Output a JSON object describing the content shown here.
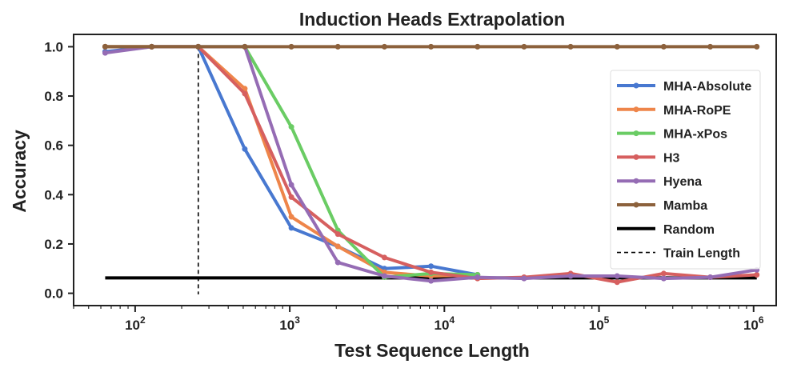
{
  "chart_data": {
    "type": "line",
    "title": "Induction Heads Extrapolation",
    "xlabel": "Test Sequence Length",
    "ylabel": "Accuracy",
    "xscale": "log",
    "xlim": [
      40,
      1400000
    ],
    "ylim": [
      -0.05,
      1.05
    ],
    "x_ticks": [
      {
        "base": "10",
        "exp": "2",
        "value": 100
      },
      {
        "base": "10",
        "exp": "3",
        "value": 1000
      },
      {
        "base": "10",
        "exp": "4",
        "value": 10000
      },
      {
        "base": "10",
        "exp": "5",
        "value": 100000
      },
      {
        "base": "10",
        "exp": "6",
        "value": 1000000
      }
    ],
    "y_ticks": [
      "0.0",
      "0.2",
      "0.4",
      "0.6",
      "0.8",
      "1.0"
    ],
    "y_tick_values": [
      0,
      0.2,
      0.4,
      0.6,
      0.8,
      1.0
    ],
    "grid": false,
    "legend_position": "center-right",
    "series": [
      {
        "name": "MHA-Absolute",
        "color": "#4878d0",
        "x": [
          64,
          128,
          256,
          512,
          1024,
          2048,
          4096,
          8192,
          16384
        ],
        "y": [
          0.98,
          1.0,
          1.0,
          0.585,
          0.265,
          0.19,
          0.1,
          0.11,
          0.075
        ]
      },
      {
        "name": "MHA-RoPE",
        "color": "#ee854a",
        "x": [
          64,
          128,
          256,
          512,
          1024,
          2048,
          4096,
          8192,
          16384
        ],
        "y": [
          1.0,
          1.0,
          1.0,
          0.83,
          0.31,
          0.19,
          0.085,
          0.07,
          0.075
        ]
      },
      {
        "name": "MHA-xPos",
        "color": "#6acc64",
        "x": [
          64,
          128,
          256,
          512,
          1024,
          2048,
          4096,
          8192,
          16384
        ],
        "y": [
          1.0,
          1.0,
          1.0,
          1.0,
          0.675,
          0.255,
          0.065,
          0.08,
          0.075
        ]
      },
      {
        "name": "H3",
        "color": "#d65f5f",
        "x": [
          64,
          128,
          256,
          512,
          1024,
          2048,
          4096,
          8192,
          16384,
          32768,
          65536,
          131072,
          262144,
          524288,
          1048576
        ],
        "y": [
          1.0,
          1.0,
          1.0,
          0.81,
          0.39,
          0.24,
          0.145,
          0.085,
          0.06,
          0.065,
          0.08,
          0.045,
          0.08,
          0.065,
          0.075
        ]
      },
      {
        "name": "Hyena",
        "color": "#956cb4",
        "x": [
          64,
          128,
          256,
          512,
          1024,
          2048,
          4096,
          8192,
          16384,
          32768,
          65536,
          131072,
          262144,
          524288,
          1048576
        ],
        "y": [
          0.975,
          1.0,
          1.0,
          1.0,
          0.44,
          0.125,
          0.07,
          0.05,
          0.065,
          0.06,
          0.07,
          0.07,
          0.06,
          0.065,
          0.095
        ]
      },
      {
        "name": "Mamba",
        "color": "#8c613c",
        "x": [
          64,
          128,
          256,
          512,
          1024,
          2048,
          4096,
          8192,
          16384,
          32768,
          65536,
          131072,
          262144,
          524288,
          1048576
        ],
        "y": [
          1.0,
          1.0,
          1.0,
          1.0,
          1.0,
          1.0,
          1.0,
          1.0,
          1.0,
          1.0,
          1.0,
          1.0,
          1.0,
          1.0,
          1.0
        ]
      }
    ],
    "reference_lines": [
      {
        "name": "Random",
        "color": "#000000",
        "style": "solid",
        "orientation": "horizontal",
        "value": 0.0625,
        "from": 64,
        "to": 1048576
      },
      {
        "name": "Train Length",
        "color": "#000000",
        "style": "dashed",
        "orientation": "vertical",
        "value": 256
      }
    ]
  }
}
